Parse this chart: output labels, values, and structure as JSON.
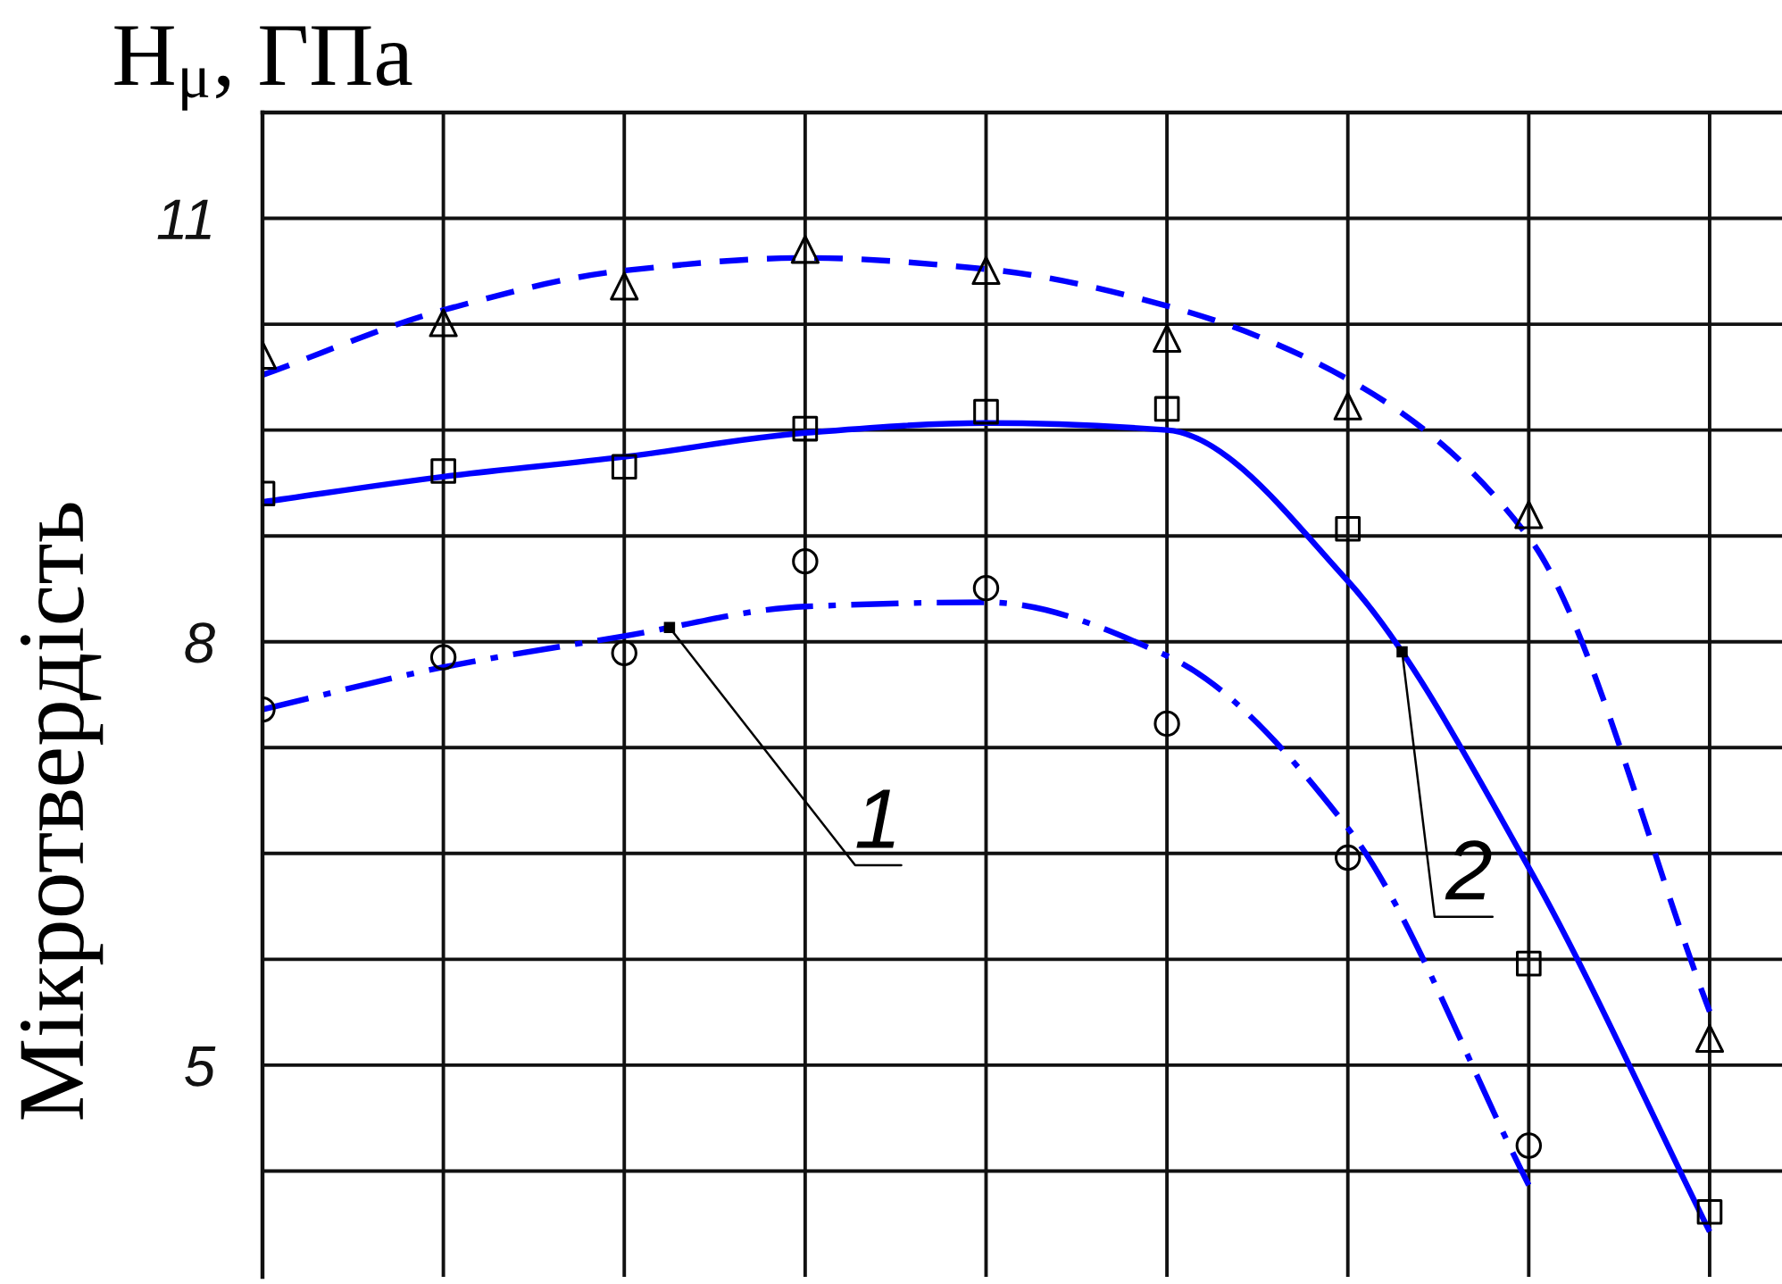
{
  "chart_data": {
    "type": "line",
    "title": "H$_{μ}$, ГПа",
    "ylabel": "Мікротвердість",
    "categories": [
      null,
      null,
      null,
      null,
      null,
      null,
      null,
      null,
      null
    ],
    "ylim": [
      3.5,
      11.75
    ],
    "yticks": [
      {
        "value": 4.25,
        "label": null
      },
      5,
      {
        "value": 5.75,
        "label": null
      },
      {
        "value": 6.5,
        "label": null
      },
      {
        "value": 7.25,
        "label": null
      },
      8,
      {
        "value": 8.75,
        "label": null
      },
      {
        "value": 9.5,
        "label": null
      },
      {
        "value": 10.25,
        "label": null
      },
      11
    ],
    "tick_labels": "y",
    "grid": true,
    "series": [
      {
        "type": "scatter",
        "marker": "circle",
        "color": "#000000",
        "values": [
          7.52,
          7.89,
          7.92,
          8.57,
          8.38,
          7.42,
          6.47,
          4.43,
          null
        ]
      },
      {
        "name": "1",
        "line_style": "dashdot",
        "color": "#0000ff",
        "values": [
          7.52,
          7.82,
          8.04,
          8.25,
          8.28,
          7.9,
          6.68,
          4.15,
          null
        ]
      },
      {
        "type": "scatter",
        "marker": "square",
        "color": "#000000",
        "values": [
          9.05,
          9.21,
          9.24,
          9.51,
          9.63,
          9.65,
          8.8,
          5.72,
          3.96
        ]
      },
      {
        "name": "2",
        "line_style": "solid",
        "color": "#0000ff",
        "values": [
          8.99,
          9.17,
          9.31,
          9.48,
          9.55,
          9.5,
          8.43,
          6.4,
          3.82
        ]
      },
      {
        "type": "scatter",
        "marker": "triangle",
        "color": "#000000",
        "values": [
          10.03,
          10.26,
          10.52,
          10.78,
          10.63,
          10.15,
          9.67,
          8.9,
          5.19
        ]
      },
      {
        "line_style": "dashed",
        "color": "#0000ff",
        "values": [
          9.89,
          10.35,
          10.63,
          10.72,
          10.64,
          10.38,
          9.86,
          8.74,
          5.38
        ]
      }
    ]
  }
}
